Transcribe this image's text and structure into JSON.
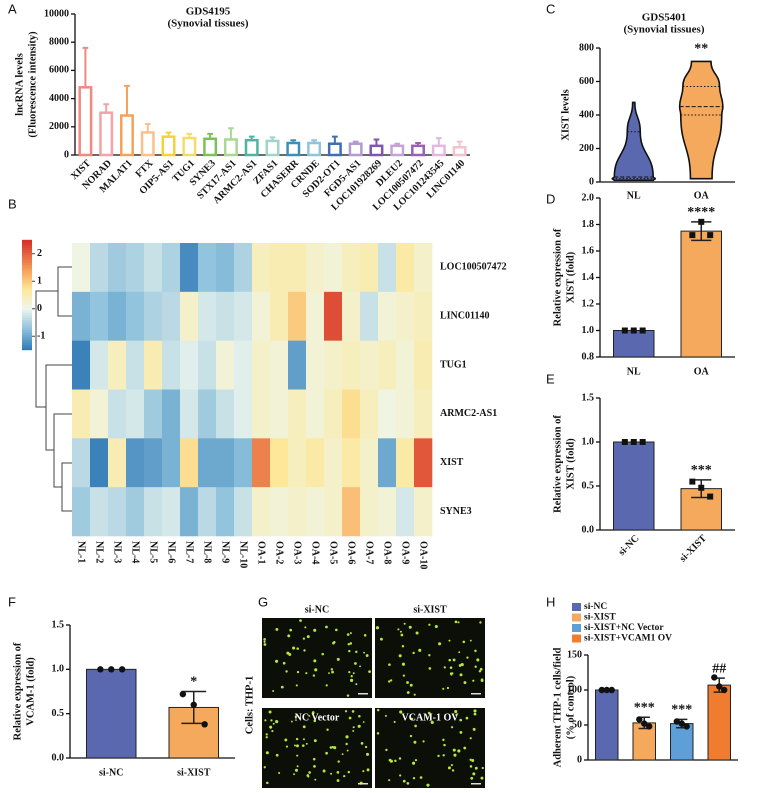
{
  "chart_data": [
    {
      "panel": "A",
      "type": "bar",
      "title": "GDS4195",
      "subtitle": "(Synovial tissues)",
      "y_label": [
        "lncRNA levels",
        "(Fluorescence intensity)"
      ],
      "categories": [
        "XIST",
        "NORAD",
        "MALAT1",
        "FTX",
        "OIP5-AS1",
        "TUG1",
        "SYNE3",
        "STX17-AS1",
        "ARMC2-AS1",
        "ZFAS1",
        "CHASERR",
        "CRNDE",
        "SOD2-OT1",
        "FGD5-AS1",
        "LOC101928269",
        "DLEU2",
        "LOC100507472",
        "LOC101243545",
        "LINC01140"
      ],
      "values": [
        4800,
        3000,
        2800,
        1600,
        1300,
        1200,
        1150,
        1100,
        1050,
        1000,
        850,
        850,
        800,
        800,
        650,
        650,
        650,
        650,
        550
      ],
      "errors": [
        2800,
        600,
        2100,
        600,
        300,
        300,
        350,
        800,
        250,
        250,
        200,
        200,
        500,
        150,
        450,
        150,
        200,
        550,
        400
      ],
      "colors": [
        "#f08a80",
        "#f2a3a8",
        "#f5a15a",
        "#f8c08a",
        "#f6d23a",
        "#f4dc6a",
        "#7bc15a",
        "#a9d893",
        "#4fb3a4",
        "#9fd4cc",
        "#3d8fb6",
        "#8fc3de",
        "#3f6fb2",
        "#b39ad3",
        "#7e55b0",
        "#c4a3d8",
        "#9b5fb7",
        "#e3b7e0",
        "#f2c2cf"
      ],
      "ylim": [
        0,
        10000
      ],
      "yticks": [
        0,
        2000,
        4000,
        6000,
        8000,
        10000
      ]
    },
    {
      "panel": "B",
      "type": "heatmap",
      "rows": [
        "LOC100507472",
        "LINC01140",
        "TUG1",
        "ARMC2-AS1",
        "XIST",
        "SYNE3"
      ],
      "columns": [
        "NL-1",
        "NL-2",
        "NL-3",
        "NL-4",
        "NL-5",
        "NL-6",
        "NL-7",
        "NL-8",
        "NL-9",
        "NL-10",
        "OA-1",
        "OA-2",
        "OA-3",
        "OA-4",
        "OA-5",
        "OA-6",
        "OA-7",
        "OA-8",
        "OA-9",
        "OA-10"
      ],
      "values": [
        [
          0.1,
          -0.4,
          -0.6,
          -0.5,
          -0.3,
          -0.5,
          -1.3,
          -0.7,
          -0.8,
          -0.5,
          0.4,
          0.5,
          0.5,
          0.3,
          0.2,
          0.4,
          0.5,
          -0.3,
          0.6,
          0.3
        ],
        [
          -0.9,
          -0.7,
          -0.9,
          -0.7,
          -0.5,
          -0.4,
          0.3,
          -0.2,
          -0.3,
          -0.2,
          0.2,
          0.5,
          1.0,
          0.2,
          2.2,
          0.3,
          -0.3,
          0.2,
          0.3,
          0.4
        ],
        [
          -1.4,
          -0.2,
          0.4,
          -0.3,
          0.5,
          -0.3,
          -0.1,
          -0.3,
          0.2,
          -0.1,
          0.3,
          0.2,
          -1.1,
          0.2,
          0.3,
          0.4,
          0.3,
          0.4,
          0.2,
          0.5
        ],
        [
          0.5,
          0.2,
          -0.3,
          -0.2,
          -0.6,
          -0.9,
          -0.2,
          -0.6,
          -0.3,
          -0.1,
          0.3,
          0.2,
          0.4,
          0.2,
          0.4,
          0.8,
          0.4,
          0.1,
          0.2,
          0.4
        ],
        [
          -0.4,
          -1.4,
          0.5,
          -1.2,
          -1.1,
          -0.9,
          0.8,
          -1.0,
          -1.0,
          -0.8,
          1.7,
          0.7,
          0.4,
          0.6,
          0.3,
          0.6,
          0.3,
          -1.0,
          0.6,
          2.1
        ],
        [
          -0.6,
          -0.3,
          -0.4,
          -0.6,
          -0.3,
          -0.2,
          -0.9,
          -0.4,
          -0.7,
          -0.3,
          0.3,
          0.2,
          0.3,
          0.2,
          0.3,
          1.1,
          0.3,
          0.2,
          -0.2,
          0.3
        ]
      ],
      "clim": [
        -1.5,
        2.5
      ],
      "cticks": [
        2,
        1,
        0,
        -1
      ]
    },
    {
      "panel": "C",
      "type": "violin",
      "title": "GDS5401",
      "subtitle": "(Synovial tissues)",
      "y_label": [
        "XIST levels"
      ],
      "categories": [
        "NL",
        "OA"
      ],
      "stats": [
        [
          10,
          20,
          30,
          300,
          475
        ],
        [
          20,
          400,
          450,
          570,
          720
        ]
      ],
      "colors": [
        "#5a68b0",
        "#f4a95c"
      ],
      "annotations": [
        null,
        "**"
      ],
      "ylim": [
        0,
        800
      ],
      "yticks": [
        0,
        200,
        400,
        600,
        800
      ]
    },
    {
      "panel": "D",
      "type": "bar",
      "y_label": [
        "Relative expression of",
        "XIST (fold)"
      ],
      "categories": [
        "NL",
        "OA"
      ],
      "values": [
        1,
        1.75
      ],
      "errors": [
        0,
        0.07
      ],
      "points": [
        [
          1,
          1,
          1
        ],
        [
          1.72,
          1.82,
          1.72
        ]
      ],
      "colors": [
        "#5a68b0",
        "#f4a95c"
      ],
      "annotations": [
        null,
        "****"
      ],
      "ylim": [
        0.8,
        2.0
      ],
      "yticks": [
        0.8,
        {
          "value": 1,
          "label": "1.0"
        },
        1.2,
        1.4,
        1.6,
        1.8,
        {
          "value": 2,
          "label": "2.0"
        }
      ]
    },
    {
      "panel": "E",
      "type": "bar",
      "y_label": [
        "Relative expression of",
        "XIST (fold)"
      ],
      "categories": [
        "si-NC",
        "si-XIST"
      ],
      "values": [
        1,
        0.47
      ],
      "errors": [
        0,
        0.1
      ],
      "points": [
        [
          1,
          1,
          1
        ],
        [
          0.55,
          0.48,
          0.38
        ]
      ],
      "colors": [
        "#5a68b0",
        "#f4a95c"
      ],
      "annotations": [
        null,
        "***"
      ],
      "ylim": [
        0,
        1.5
      ],
      "yticks": [
        {
          "value": 0,
          "label": "0.0"
        },
        0.5,
        {
          "value": 1,
          "label": "1.0"
        },
        1.5
      ]
    },
    {
      "panel": "F",
      "type": "bar",
      "y_label": [
        "Relative expression of",
        "VCAM-1 (fold)"
      ],
      "categories": [
        "si-NC",
        "si-XIST"
      ],
      "values": [
        1,
        0.57
      ],
      "errors": [
        0,
        0.18
      ],
      "points": [
        [
          1,
          1,
          1
        ],
        [
          0.72,
          0.6,
          0.38
        ]
      ],
      "colors": [
        "#5a68b0",
        "#f4a95c"
      ],
      "annotations": [
        null,
        "*"
      ],
      "ylim": [
        0,
        1.5
      ],
      "yticks": [
        {
          "value": 0,
          "label": "0.0"
        },
        0.5,
        {
          "value": 1,
          "label": "1.0"
        },
        1.5
      ]
    },
    {
      "panel": "G",
      "type": "image",
      "side_label": "Cells: THP-1",
      "images": [
        "si-NC",
        "si-XIST",
        "NC Vector",
        "VCAM-1 OV"
      ]
    },
    {
      "panel": "H",
      "type": "bar",
      "y_label": [
        "Adherent THP-1 cells/field",
        "(% of control)"
      ],
      "categories": [
        "si-NC",
        "si-XIST",
        "si-XIST+NC Vector",
        "si-XIST+VCAM1 OV"
      ],
      "values": [
        100,
        53,
        52,
        107
      ],
      "errors": [
        0,
        8,
        6,
        10
      ],
      "points": [
        [
          100,
          100,
          100
        ],
        [
          58,
          52,
          48
        ],
        [
          55,
          52,
          48
        ],
        [
          118,
          105,
          100
        ]
      ],
      "colors": [
        "#5a68b0",
        "#f4a95c",
        "#5f9fd8",
        "#f07c30"
      ],
      "annotations": [
        null,
        "***",
        "***",
        "##"
      ],
      "legend": "top-left",
      "ylim": [
        0,
        150
      ],
      "yticks": [
        0,
        50,
        100,
        150
      ]
    }
  ]
}
